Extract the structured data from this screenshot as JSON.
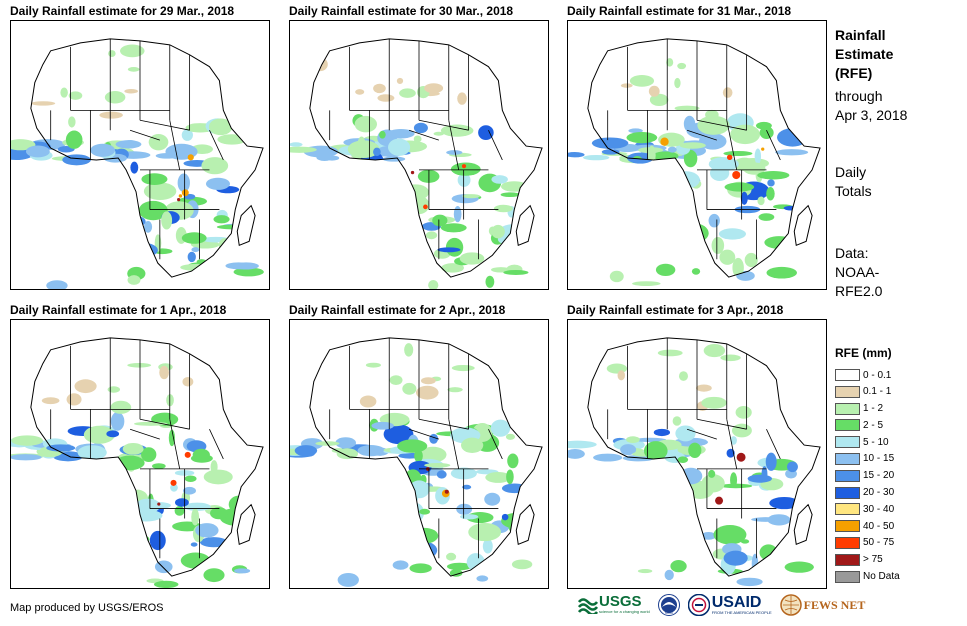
{
  "panels": [
    {
      "title": "Daily Rainfall estimate for 29 Mar., 2018"
    },
    {
      "title": "Daily Rainfall estimate for 30 Mar., 2018"
    },
    {
      "title": "Daily Rainfall estimate for 31 Mar., 2018"
    },
    {
      "title": "Daily Rainfall estimate for 1 Apr., 2018"
    },
    {
      "title": "Daily Rainfall estimate for 2 Apr., 2018"
    },
    {
      "title": "Daily Rainfall estimate for 3 Apr., 2018"
    }
  ],
  "sidebar": {
    "title_lines": [
      "Rainfall",
      "Estimate",
      "(RFE)"
    ],
    "through_lines": [
      "through",
      "Apr 3, 2018"
    ],
    "daily_lines": [
      "Daily",
      "Totals"
    ],
    "data_lines": [
      "Data:",
      "NOAA-",
      "RFE2.0"
    ]
  },
  "legend": {
    "title": "RFE (mm)",
    "items": [
      {
        "label": "0 - 0.1",
        "color": "#ffffff"
      },
      {
        "label": "0.1 - 1",
        "color": "#e6d2b0"
      },
      {
        "label": "1 - 2",
        "color": "#b8f0b0"
      },
      {
        "label": "2 - 5",
        "color": "#66dd66"
      },
      {
        "label": "5 - 10",
        "color": "#b0e8f0"
      },
      {
        "label": "10 - 15",
        "color": "#8cc0f0"
      },
      {
        "label": "15 - 20",
        "color": "#4c90e8"
      },
      {
        "label": "20 - 30",
        "color": "#1e5ee0"
      },
      {
        "label": "30 - 40",
        "color": "#ffe680"
      },
      {
        "label": "40 - 50",
        "color": "#f5a000"
      },
      {
        "label": "50 - 75",
        "color": "#ff3c00"
      },
      {
        "label": "> 75",
        "color": "#a01818"
      },
      {
        "label": "No Data",
        "color": "#999999"
      }
    ]
  },
  "credit": "Map produced by USGS/EROS",
  "logos": {
    "usgs": "USGS",
    "usgs_tagline": "science for a changing world",
    "noaa": "NOAA",
    "usaid": "USAID",
    "usaid_tagline": "FROM THE AMERICAN PEOPLE",
    "fewsnet": "FEWS NET"
  }
}
